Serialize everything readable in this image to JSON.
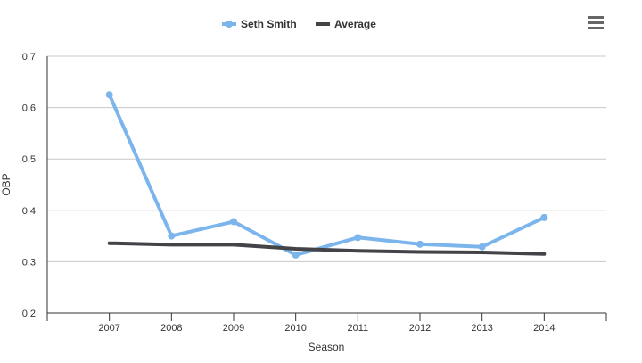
{
  "chart_data": {
    "type": "line",
    "categories": [
      "2007",
      "2008",
      "2009",
      "2010",
      "2011",
      "2012",
      "2013",
      "2014"
    ],
    "series": [
      {
        "name": "Seth Smith",
        "color": "#7cb5ec",
        "values": [
          0.625,
          0.35,
          0.378,
          0.313,
          0.347,
          0.334,
          0.329,
          0.386
        ]
      },
      {
        "name": "Average",
        "color": "#434348",
        "values": [
          0.336,
          0.333,
          0.333,
          0.325,
          0.321,
          0.319,
          0.318,
          0.315
        ]
      }
    ],
    "xlabel": "Season",
    "ylabel": "OBP",
    "ylim": [
      0.2,
      0.7
    ],
    "yticks": [
      "0.2",
      "0.3",
      "0.4",
      "0.5",
      "0.6",
      "0.7"
    ],
    "grid": true,
    "legend_position": "top-center",
    "menu_icon": "hamburger-menu-icon"
  }
}
